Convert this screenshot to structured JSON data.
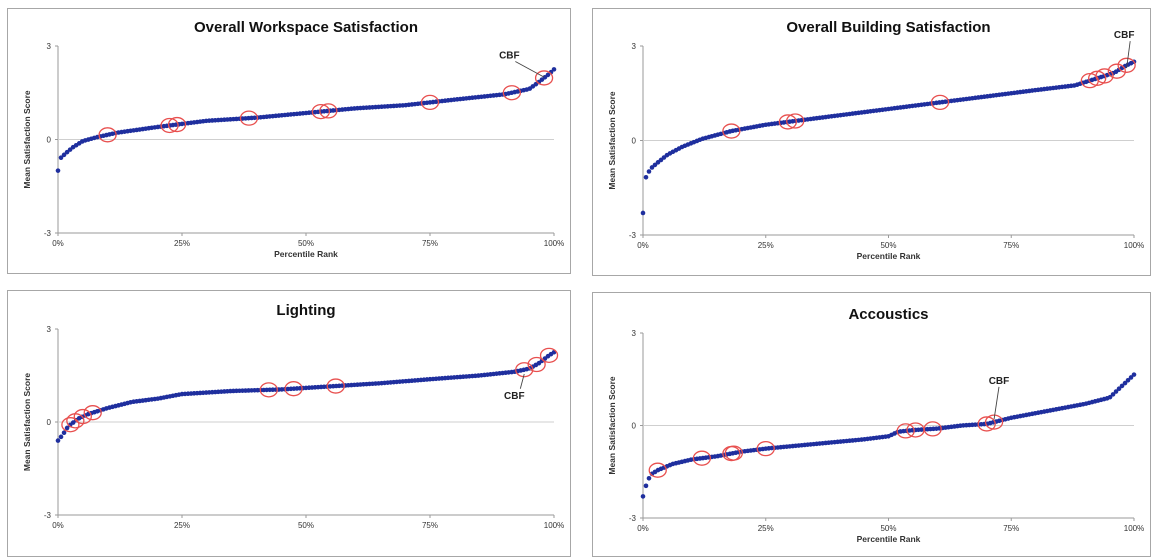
{
  "colors": {
    "points": "#1f2f9e",
    "highlight": "#e8504f",
    "axis": "#9a9a9a",
    "zero_line": "#cfcfcf",
    "border": "#a7a7a7"
  },
  "chart_data": [
    {
      "type": "scatter",
      "title": "Overall Workspace Satisfaction",
      "xlabel": "Percentile Rank",
      "ylabel": "Mean Satisfaction Score",
      "xlim": [
        0,
        100
      ],
      "ylim": [
        -3,
        3
      ],
      "x_ticks": [
        "0%",
        "25%",
        "50%",
        "75%",
        "100%"
      ],
      "y_ticks": [
        "3",
        "0",
        "-3"
      ],
      "grid": false,
      "legend": "none",
      "curve": [
        [
          0,
          -1.0
        ],
        [
          0.5,
          -0.6
        ],
        [
          1.5,
          -0.45
        ],
        [
          3,
          -0.25
        ],
        [
          5,
          -0.05
        ],
        [
          8,
          0.08
        ],
        [
          12,
          0.22
        ],
        [
          20,
          0.4
        ],
        [
          30,
          0.6
        ],
        [
          40,
          0.7
        ],
        [
          50,
          0.85
        ],
        [
          60,
          1.0
        ],
        [
          70,
          1.1
        ],
        [
          80,
          1.28
        ],
        [
          90,
          1.45
        ],
        [
          95,
          1.62
        ],
        [
          97,
          1.85
        ],
        [
          99,
          2.1
        ],
        [
          100,
          2.25
        ]
      ],
      "highlights": [
        10,
        22.5,
        24,
        38.5,
        53,
        54.5,
        75,
        91.5,
        98
      ],
      "annotations": [
        {
          "text": "CBF",
          "x": 91,
          "y": 2.6,
          "pointer": [
            98,
            2.0
          ]
        }
      ]
    },
    {
      "type": "scatter",
      "title": "Overall Building Satisfaction",
      "xlabel": "Percentile Rank",
      "ylabel": "Mean Satisfaction Score",
      "xlim": [
        0,
        100
      ],
      "ylim": [
        -3,
        3
      ],
      "x_ticks": [
        "0%",
        "25%",
        "50%",
        "75%",
        "100%"
      ],
      "y_ticks": [
        "3",
        "0",
        "-3"
      ],
      "grid": false,
      "legend": "none",
      "curve": [
        [
          0,
          -2.3
        ],
        [
          0.5,
          -1.2
        ],
        [
          1.5,
          -0.9
        ],
        [
          3,
          -0.7
        ],
        [
          5,
          -0.45
        ],
        [
          8,
          -0.2
        ],
        [
          12,
          0.05
        ],
        [
          18,
          0.3
        ],
        [
          25,
          0.5
        ],
        [
          30,
          0.6
        ],
        [
          40,
          0.8
        ],
        [
          50,
          1.0
        ],
        [
          60,
          1.2
        ],
        [
          70,
          1.4
        ],
        [
          80,
          1.6
        ],
        [
          88,
          1.75
        ],
        [
          92,
          1.95
        ],
        [
          96,
          2.15
        ],
        [
          98,
          2.35
        ],
        [
          100,
          2.5
        ]
      ],
      "highlights": [
        18,
        29.5,
        31,
        60.5,
        91,
        92.5,
        94,
        96.5,
        98.5
      ],
      "annotations": [
        {
          "text": "CBF",
          "x": 98,
          "y": 3.25,
          "pointer": [
            98.5,
            2.3
          ]
        }
      ]
    },
    {
      "type": "scatter",
      "title": "Lighting",
      "xlabel": "",
      "ylabel": "Mean Satisfaction Score",
      "xlim": [
        0,
        100
      ],
      "ylim": [
        -3,
        3
      ],
      "x_ticks": [
        "0%",
        "25%",
        "50%",
        "75%",
        "100%"
      ],
      "y_ticks": [
        "3",
        "0",
        "-3"
      ],
      "grid": false,
      "legend": "none",
      "curve": [
        [
          0,
          -0.6
        ],
        [
          1,
          -0.4
        ],
        [
          2,
          -0.15
        ],
        [
          4,
          0.1
        ],
        [
          6,
          0.25
        ],
        [
          10,
          0.45
        ],
        [
          15,
          0.65
        ],
        [
          20,
          0.75
        ],
        [
          25,
          0.9
        ],
        [
          35,
          1.0
        ],
        [
          45,
          1.05
        ],
        [
          55,
          1.15
        ],
        [
          65,
          1.25
        ],
        [
          75,
          1.38
        ],
        [
          85,
          1.5
        ],
        [
          92,
          1.62
        ],
        [
          95,
          1.72
        ],
        [
          97,
          1.9
        ],
        [
          99,
          2.15
        ],
        [
          100,
          2.25
        ]
      ],
      "highlights": [
        2.5,
        3.5,
        5,
        7,
        42.5,
        47.5,
        56,
        94,
        96.5,
        99
      ],
      "annotations": [
        {
          "text": "CBF",
          "x": 92,
          "y": 0.75,
          "pointer": [
            94,
            1.55
          ]
        }
      ]
    },
    {
      "type": "scatter",
      "title": "Accoustics",
      "xlabel": "Percentile Rank",
      "ylabel": "Mean Satisfaction Score",
      "xlim": [
        0,
        100
      ],
      "ylim": [
        -3,
        3
      ],
      "x_ticks": [
        "0%",
        "25%",
        "50%",
        "75%",
        "100%"
      ],
      "y_ticks": [
        "3",
        "0",
        "-3"
      ],
      "grid": false,
      "legend": "none",
      "curve": [
        [
          0,
          -2.3
        ],
        [
          0.5,
          -2.0
        ],
        [
          1.5,
          -1.6
        ],
        [
          3,
          -1.45
        ],
        [
          6,
          -1.25
        ],
        [
          10,
          -1.1
        ],
        [
          15,
          -1.0
        ],
        [
          20,
          -0.85
        ],
        [
          25,
          -0.75
        ],
        [
          35,
          -0.6
        ],
        [
          45,
          -0.45
        ],
        [
          50,
          -0.35
        ],
        [
          52,
          -0.2
        ],
        [
          55,
          -0.15
        ],
        [
          60,
          -0.1
        ],
        [
          65,
          0.0
        ],
        [
          70,
          0.05
        ],
        [
          75,
          0.25
        ],
        [
          80,
          0.4
        ],
        [
          85,
          0.55
        ],
        [
          90,
          0.7
        ],
        [
          95,
          0.9
        ],
        [
          97,
          1.2
        ],
        [
          99,
          1.5
        ],
        [
          100,
          1.65
        ]
      ],
      "highlights": [
        3,
        12,
        18,
        18.5,
        25,
        53.5,
        55.5,
        59,
        70,
        71.5
      ],
      "annotations": [
        {
          "text": "CBF",
          "x": 72.5,
          "y": 1.35,
          "pointer": [
            71.5,
            0.2
          ]
        }
      ]
    }
  ]
}
